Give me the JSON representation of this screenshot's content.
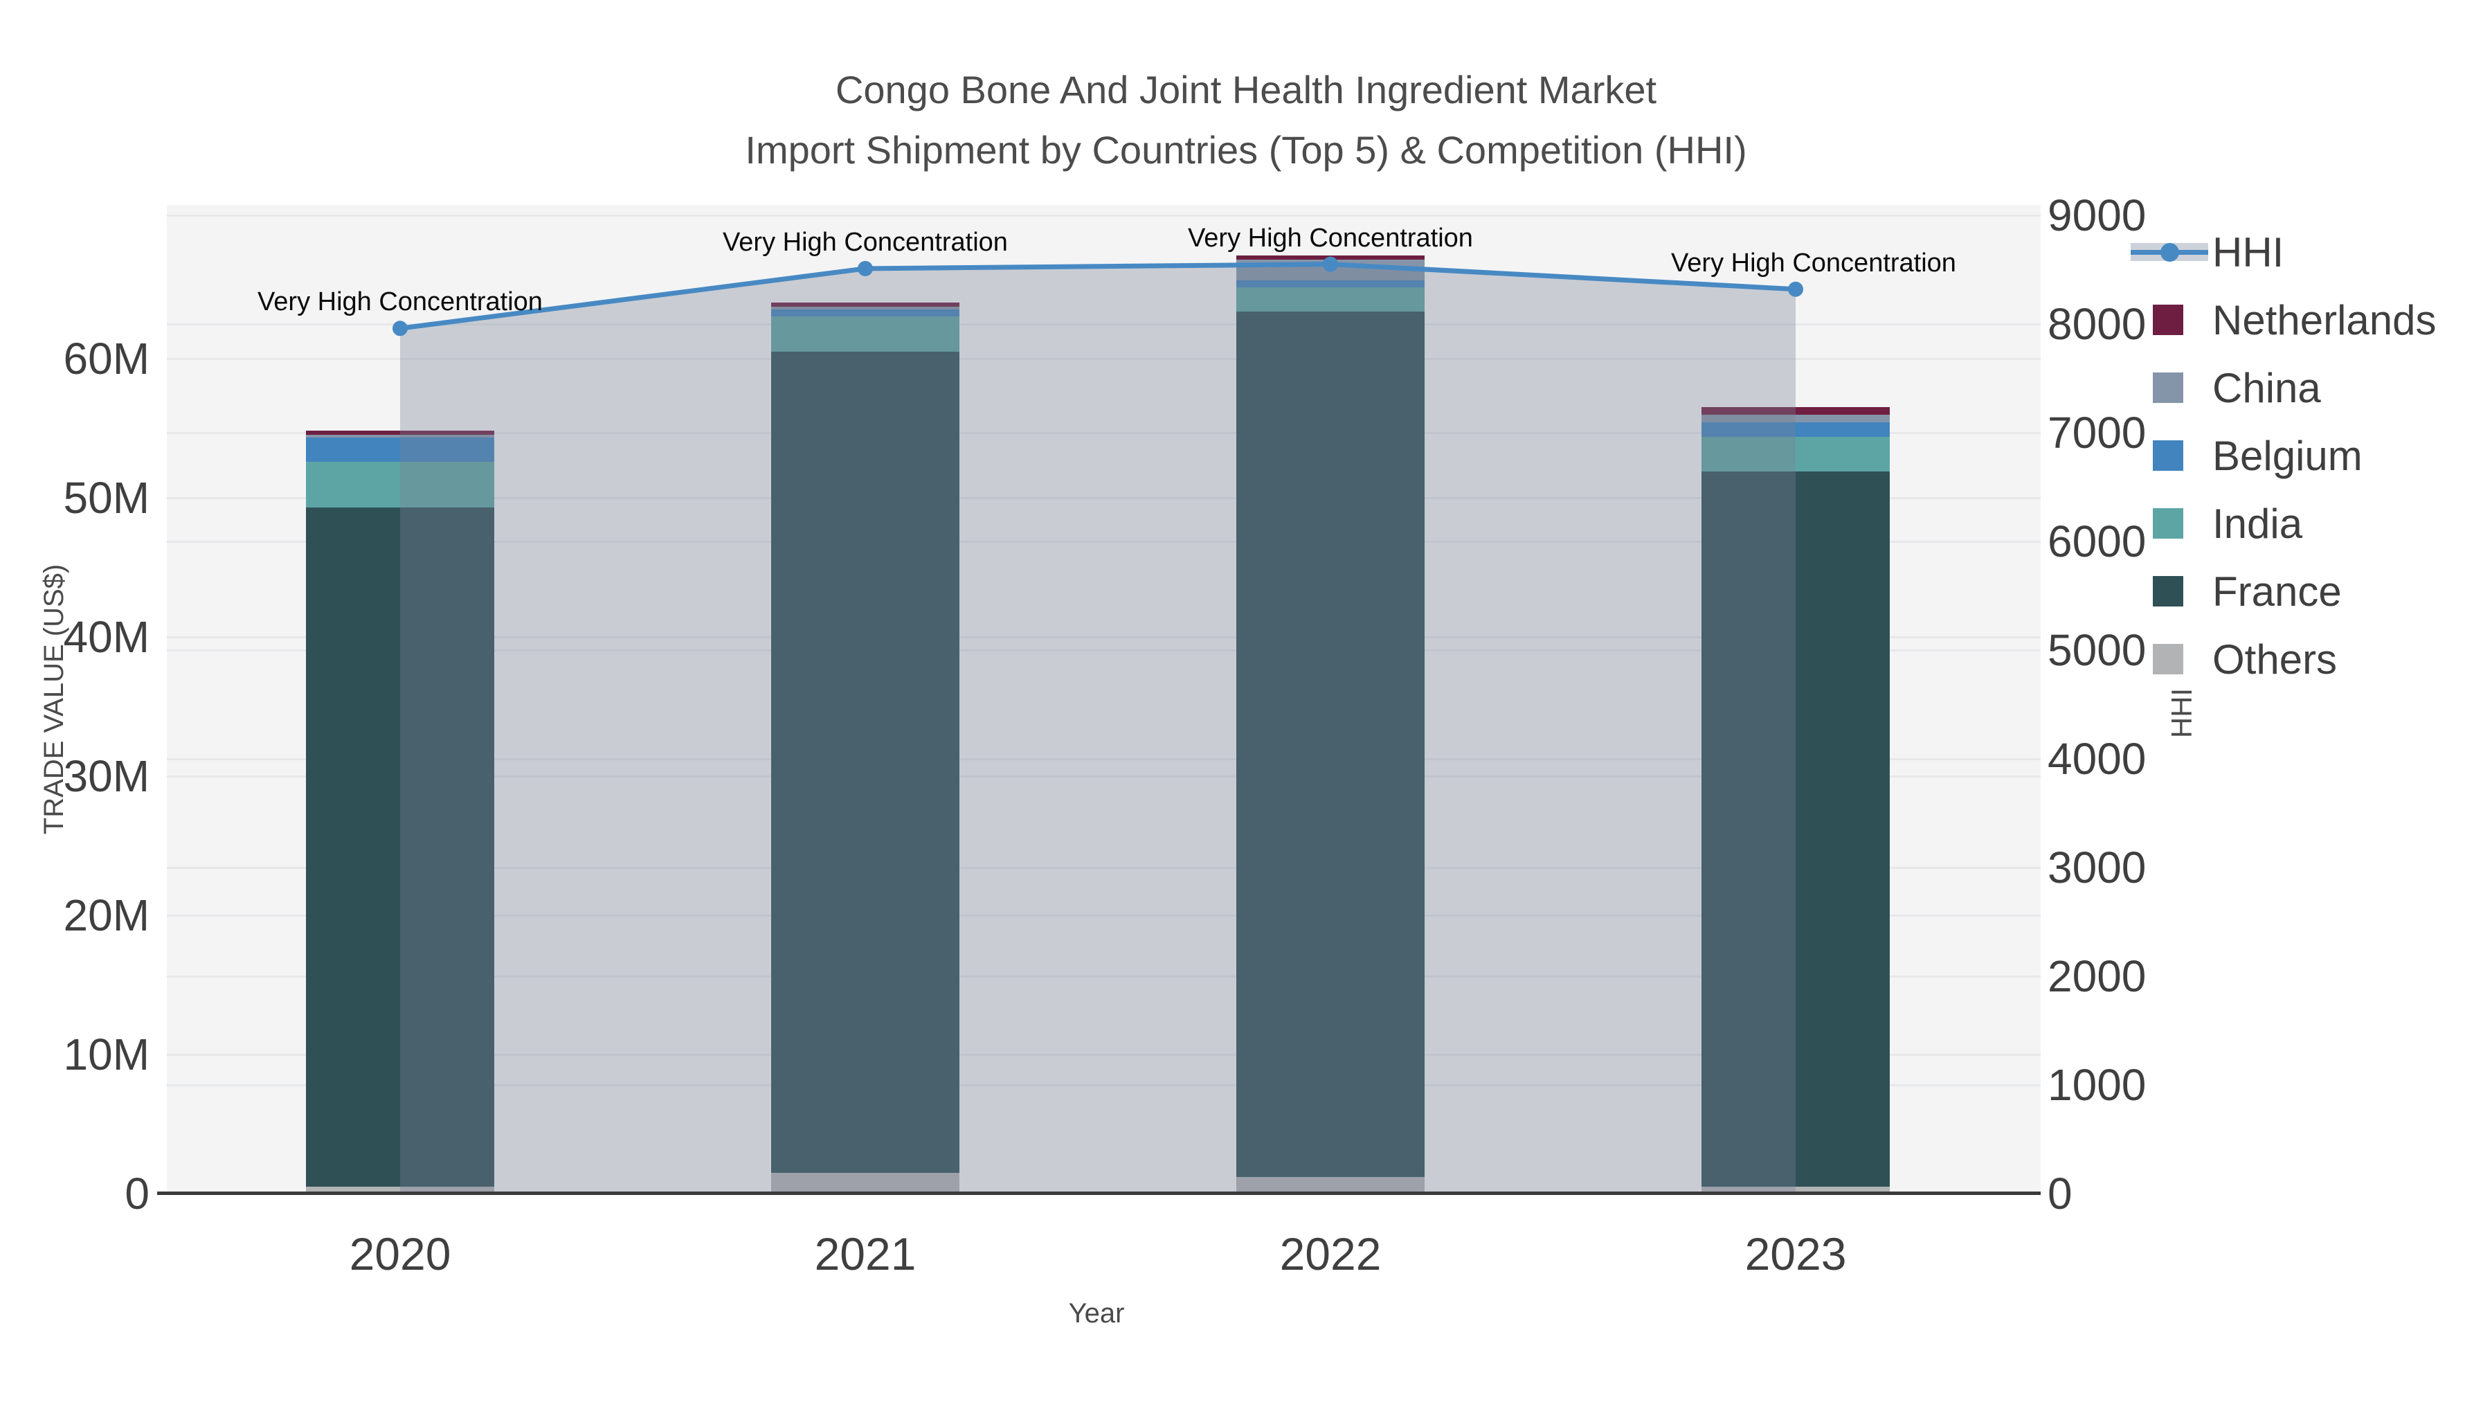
{
  "title": {
    "line1": "Congo Bone And Joint Health Ingredient Market",
    "line2": "Import Shipment by Countries (Top 5) & Competition (HHI)"
  },
  "colors": {
    "plot_background": "#f4f4f5",
    "gridline": "#e7e8ea",
    "axis_line": "#3a3a3a",
    "hhi_line": "#4789c3",
    "hhi_fill": "rgba(121,128,148,0.35)",
    "netherlands": "#6e1e41",
    "china": "#8595a9",
    "belgium": "#4184be",
    "india": "#5da5a4",
    "france": "#2f5156",
    "others": "#b2b3b5",
    "legend_hhi_band": "#cdd2da"
  },
  "chart_data": {
    "type": "bar",
    "subtype": "stacked bars with HHI line + shaded area on secondary axis",
    "categories": [
      "2020",
      "2021",
      "2022",
      "2023"
    ],
    "series": [
      {
        "name": "Others",
        "color_key": "others",
        "values": [
          0.5,
          1.5,
          1.2,
          0.5
        ]
      },
      {
        "name": "France",
        "color_key": "france",
        "values": [
          48.8,
          59.0,
          62.2,
          51.4
        ]
      },
      {
        "name": "India",
        "color_key": "india",
        "values": [
          3.3,
          2.55,
          1.7,
          2.5
        ]
      },
      {
        "name": "Belgium",
        "color_key": "belgium",
        "values": [
          1.75,
          0.5,
          0.5,
          1.0
        ]
      },
      {
        "name": "China",
        "color_key": "china",
        "values": [
          0.2,
          0.2,
          1.5,
          0.55
        ]
      },
      {
        "name": "Netherlands",
        "color_key": "netherlands",
        "values": [
          0.3,
          0.3,
          0.3,
          0.55
        ]
      }
    ],
    "line_series": {
      "name": "HHI",
      "values": [
        7960,
        8510,
        8550,
        8320
      ]
    },
    "annotations": [
      "Very High Concentration",
      "Very High Concentration",
      "Very High Concentration",
      "Very High Concentration"
    ],
    "left_axis": {
      "label": "TRADE VALUE (US$)",
      "tick_labels": [
        "0",
        "10M",
        "20M",
        "30M",
        "40M",
        "50M",
        "60M"
      ],
      "tick_values": [
        0,
        10,
        20,
        30,
        40,
        50,
        60
      ],
      "units": "millions US$"
    },
    "right_axis": {
      "label": "HHI",
      "tick_labels": [
        "0",
        "1000",
        "2000",
        "3000",
        "4000",
        "5000",
        "6000",
        "7000",
        "8000",
        "9000"
      ],
      "tick_values": [
        0,
        1000,
        2000,
        3000,
        4000,
        5000,
        6000,
        7000,
        8000,
        9000
      ]
    },
    "x_axis": {
      "label": "Year"
    },
    "legend": [
      {
        "label": "HHI",
        "type": "line",
        "color_key": "hhi_line"
      },
      {
        "label": "Netherlands",
        "type": "swatch",
        "color_key": "netherlands"
      },
      {
        "label": "China",
        "type": "swatch",
        "color_key": "china"
      },
      {
        "label": "Belgium",
        "type": "swatch",
        "color_key": "belgium"
      },
      {
        "label": "India",
        "type": "swatch",
        "color_key": "india"
      },
      {
        "label": "France",
        "type": "swatch",
        "color_key": "france"
      },
      {
        "label": "Others",
        "type": "swatch",
        "color_key": "others"
      }
    ]
  }
}
